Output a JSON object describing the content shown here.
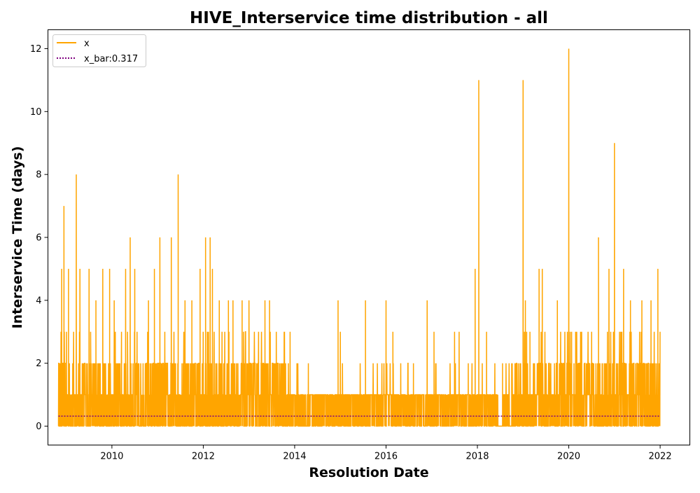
{
  "chart_data": {
    "type": "line",
    "title": "HIVE_Interservice time distribution - all",
    "xlabel": "Resolution Date",
    "ylabel": "Interservice Time (days)",
    "xlim": [
      2008.6,
      2022.65
    ],
    "ylim": [
      -0.6,
      12.6
    ],
    "xticks": [
      2010,
      2012,
      2014,
      2016,
      2018,
      2020,
      2022
    ],
    "yticks": [
      0,
      2,
      4,
      6,
      8,
      10,
      12
    ],
    "grid": false,
    "legend_position": "top-left",
    "series": [
      {
        "name": "x",
        "style": "solid",
        "color": "#ffa500",
        "x_start": 2008.83,
        "x_end": 2022.0,
        "typical_range": [
          0,
          2
        ],
        "peaks": [
          {
            "x": 2008.9,
            "y": 5
          },
          {
            "x": 2008.95,
            "y": 7
          },
          {
            "x": 2009.05,
            "y": 5
          },
          {
            "x": 2009.22,
            "y": 8
          },
          {
            "x": 2009.3,
            "y": 5
          },
          {
            "x": 2009.5,
            "y": 5
          },
          {
            "x": 2009.65,
            "y": 4
          },
          {
            "x": 2009.8,
            "y": 5
          },
          {
            "x": 2009.95,
            "y": 5
          },
          {
            "x": 2010.05,
            "y": 4
          },
          {
            "x": 2010.3,
            "y": 5
          },
          {
            "x": 2010.4,
            "y": 6
          },
          {
            "x": 2010.5,
            "y": 5
          },
          {
            "x": 2010.8,
            "y": 4
          },
          {
            "x": 2010.93,
            "y": 5
          },
          {
            "x": 2011.05,
            "y": 6
          },
          {
            "x": 2011.3,
            "y": 6
          },
          {
            "x": 2011.45,
            "y": 8
          },
          {
            "x": 2011.6,
            "y": 4
          },
          {
            "x": 2011.75,
            "y": 4
          },
          {
            "x": 2011.93,
            "y": 5
          },
          {
            "x": 2012.05,
            "y": 6
          },
          {
            "x": 2012.15,
            "y": 6
          },
          {
            "x": 2012.2,
            "y": 5
          },
          {
            "x": 2012.35,
            "y": 4
          },
          {
            "x": 2012.55,
            "y": 4
          },
          {
            "x": 2012.65,
            "y": 4
          },
          {
            "x": 2012.85,
            "y": 4
          },
          {
            "x": 2013.0,
            "y": 4
          },
          {
            "x": 2013.35,
            "y": 4
          },
          {
            "x": 2013.45,
            "y": 4
          },
          {
            "x": 2013.9,
            "y": 3
          },
          {
            "x": 2014.3,
            "y": 2
          },
          {
            "x": 2014.95,
            "y": 4
          },
          {
            "x": 2015.0,
            "y": 3
          },
          {
            "x": 2015.55,
            "y": 4
          },
          {
            "x": 2016.0,
            "y": 4
          },
          {
            "x": 2016.15,
            "y": 3
          },
          {
            "x": 2016.6,
            "y": 2
          },
          {
            "x": 2016.9,
            "y": 4
          },
          {
            "x": 2017.05,
            "y": 3
          },
          {
            "x": 2017.5,
            "y": 3
          },
          {
            "x": 2017.6,
            "y": 3
          },
          {
            "x": 2017.8,
            "y": 2
          },
          {
            "x": 2017.95,
            "y": 5
          },
          {
            "x": 2018.03,
            "y": 11
          },
          {
            "x": 2018.2,
            "y": 3
          },
          {
            "x": 2018.55,
            "y": 2
          },
          {
            "x": 2018.75,
            "y": 2
          },
          {
            "x": 2019.0,
            "y": 11
          },
          {
            "x": 2019.05,
            "y": 4
          },
          {
            "x": 2019.15,
            "y": 3
          },
          {
            "x": 2019.35,
            "y": 5
          },
          {
            "x": 2019.42,
            "y": 5
          },
          {
            "x": 2019.75,
            "y": 4
          },
          {
            "x": 2020.0,
            "y": 12
          },
          {
            "x": 2020.15,
            "y": 3
          },
          {
            "x": 2020.5,
            "y": 3
          },
          {
            "x": 2020.65,
            "y": 6
          },
          {
            "x": 2020.88,
            "y": 5
          },
          {
            "x": 2021.0,
            "y": 9
          },
          {
            "x": 2021.2,
            "y": 5
          },
          {
            "x": 2021.35,
            "y": 4
          },
          {
            "x": 2021.6,
            "y": 4
          },
          {
            "x": 2021.8,
            "y": 4
          },
          {
            "x": 2021.95,
            "y": 5
          }
        ]
      },
      {
        "name": "x_bar:0.317",
        "style": "dotted",
        "color": "#800080",
        "x": [
          2008.83,
          2022.0
        ],
        "y": [
          0.317,
          0.317
        ]
      }
    ]
  }
}
